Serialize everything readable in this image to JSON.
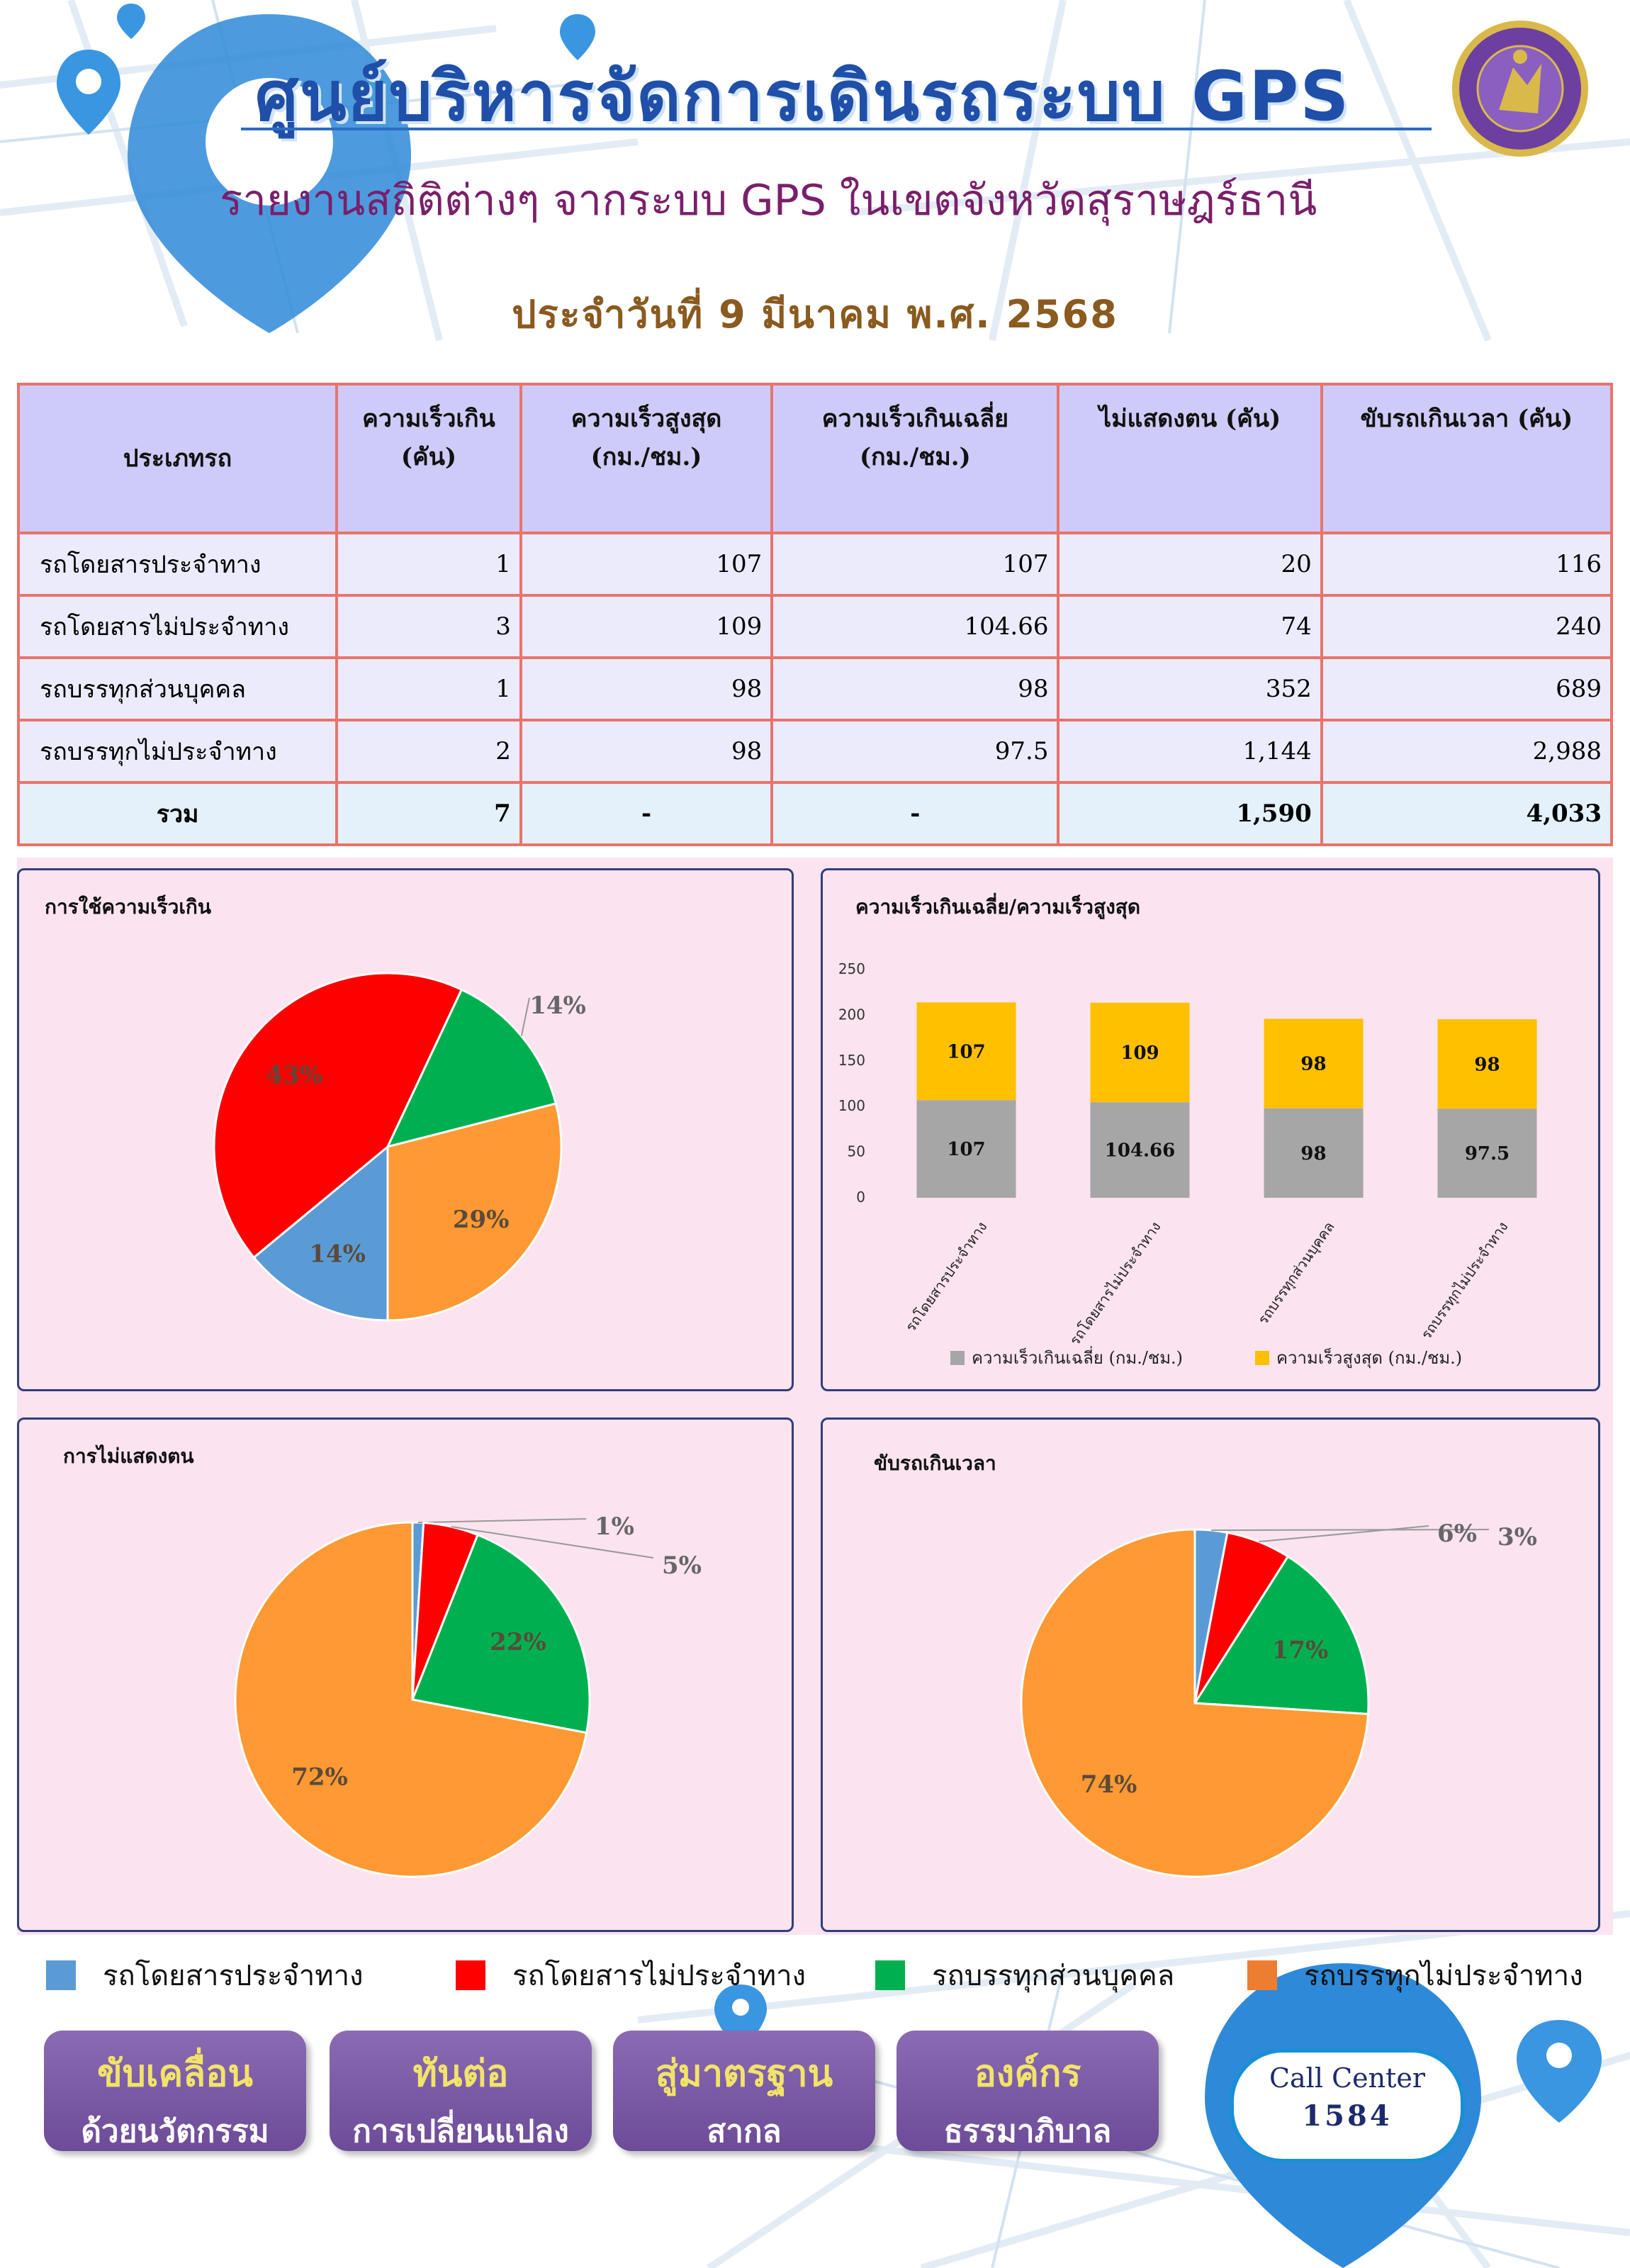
{
  "header": {
    "title": "ศูนย์บริหารจัดการเดินรถระบบ GPS",
    "subtitle": "รายงานสถิติต่างๆ จากระบบ GPS ในเขตจังหวัดสุราษฎร์ธานี",
    "date": "ประจำวันที่  9  มีนาคม  พ.ศ. 2568"
  },
  "table": {
    "headers": [
      {
        "line1": "ประเภทรถ",
        "line2": ""
      },
      {
        "line1": "ความเร็วเกิน",
        "line2": "(คัน)"
      },
      {
        "line1": "ความเร็วสูงสุด",
        "line2": "(กม./ชม.)"
      },
      {
        "line1": "ความเร็วเกินเฉลี่ย",
        "line2": "(กม./ชม.)"
      },
      {
        "line1": "ไม่แสดงตน (คัน)",
        "line2": ""
      },
      {
        "line1": "ขับรถเกินเวลา (คัน)",
        "line2": ""
      }
    ],
    "rows": [
      {
        "type": "รถโดยสารประจำทาง",
        "speeding": "1",
        "max_speed": "107",
        "avg_speed": "107",
        "no_id": "20",
        "overtime": "116"
      },
      {
        "type": "รถโดยสารไม่ประจำทาง",
        "speeding": "3",
        "max_speed": "109",
        "avg_speed": "104.66",
        "no_id": "74",
        "overtime": "240"
      },
      {
        "type": "รถบรรทุกส่วนบุคคล",
        "speeding": "1",
        "max_speed": "98",
        "avg_speed": "98",
        "no_id": "352",
        "overtime": "689"
      },
      {
        "type": "รถบรรทุกไม่ประจำทาง",
        "speeding": "2",
        "max_speed": "98",
        "avg_speed": "97.5",
        "no_id": "1,144",
        "overtime": "2,988"
      }
    ],
    "total": {
      "type": "รวม",
      "speeding": "7",
      "max_speed": "-",
      "avg_speed": "-",
      "no_id": "1,590",
      "overtime": "4,033"
    }
  },
  "chart_data": [
    {
      "type": "pie",
      "title": "การใช้ความเร็วเกิน",
      "categories": [
        "รถโดยสารประจำทาง",
        "รถโดยสารไม่ประจำทาง",
        "รถบรรทุกส่วนบุคคล",
        "รถบรรทุกไม่ประจำทาง"
      ],
      "values": [
        14,
        43,
        14,
        29
      ],
      "labels": [
        "14%",
        "43%",
        "14%",
        "29%"
      ],
      "colors": [
        "#5b9bd5",
        "#ff0000",
        "#00b050",
        "#ff9933"
      ]
    },
    {
      "type": "bar",
      "stacked": true,
      "title": "ความเร็วเกินเฉลี่ย/ความเร็วสูงสุด",
      "categories": [
        "รถโดยสารประจำทาง",
        "รถโดยสารไม่ประจำทาง",
        "รถบรรทุกส่วนบุคคล",
        "รถบรรทุกไม่ประจำทาง"
      ],
      "series": [
        {
          "name": "ความเร็วเกินเฉลี่ย (กม./ชม.)",
          "values": [
            107,
            104.66,
            98,
            97.5
          ],
          "labels": [
            "107",
            "104.66",
            "98",
            "97.5"
          ],
          "color": "#a6a6a6"
        },
        {
          "name": "ความเร็วสูงสุด (กม./ชม.)",
          "values": [
            107,
            109,
            98,
            98
          ],
          "labels": [
            "107",
            "109",
            "98",
            "98"
          ],
          "color": "#ffc000"
        }
      ],
      "ylim": [
        0,
        250
      ],
      "yticks": [
        "0",
        "50",
        "100",
        "150",
        "200",
        "250"
      ],
      "legend": "bottom"
    },
    {
      "type": "pie",
      "title": "การไม่แสดงตน",
      "categories": [
        "รถโดยสารประจำทาง",
        "รถโดยสารไม่ประจำทาง",
        "รถบรรทุกส่วนบุคคล",
        "รถบรรทุกไม่ประจำทาง"
      ],
      "values": [
        1,
        5,
        22,
        72
      ],
      "labels": [
        "1%",
        "5%",
        "22%",
        "72%"
      ],
      "colors": [
        "#5b9bd5",
        "#ff0000",
        "#00b050",
        "#ff9933"
      ]
    },
    {
      "type": "pie",
      "title": "ขับรถเกินเวลา",
      "categories": [
        "รถโดยสารประจำทาง",
        "รถโดยสารไม่ประจำทาง",
        "รถบรรทุกส่วนบุคคล",
        "รถบรรทุกไม่ประจำทาง"
      ],
      "values": [
        3,
        6,
        17,
        74
      ],
      "labels": [
        "3%",
        "6%",
        "17%",
        "74%"
      ],
      "colors": [
        "#5b9bd5",
        "#ff0000",
        "#00b050",
        "#ff9933"
      ]
    }
  ],
  "legend": [
    {
      "label": "รถโดยสารประจำทาง",
      "color": "#5b9bd5"
    },
    {
      "label": "รถโดยสารไม่ประจำทาง",
      "color": "#ff0000"
    },
    {
      "label": "รถบรรทุกส่วนบุคคล",
      "color": "#00b050"
    },
    {
      "label": "รถบรรทุกไม่ประจำทาง",
      "color": "#ed7d31"
    }
  ],
  "buttons": [
    {
      "line1": "ขับเคลื่อน",
      "line2": "ด้วยนวัตกรรม"
    },
    {
      "line1": "ทันต่อ",
      "line2": "การเปลี่ยนแปลง"
    },
    {
      "line1": "สู่มาตรฐาน",
      "line2": "สากล"
    },
    {
      "line1": "องค์กร",
      "line2": "ธรรมาภิบาล"
    }
  ],
  "call_center": {
    "label": "Call Center",
    "number": "1584"
  }
}
